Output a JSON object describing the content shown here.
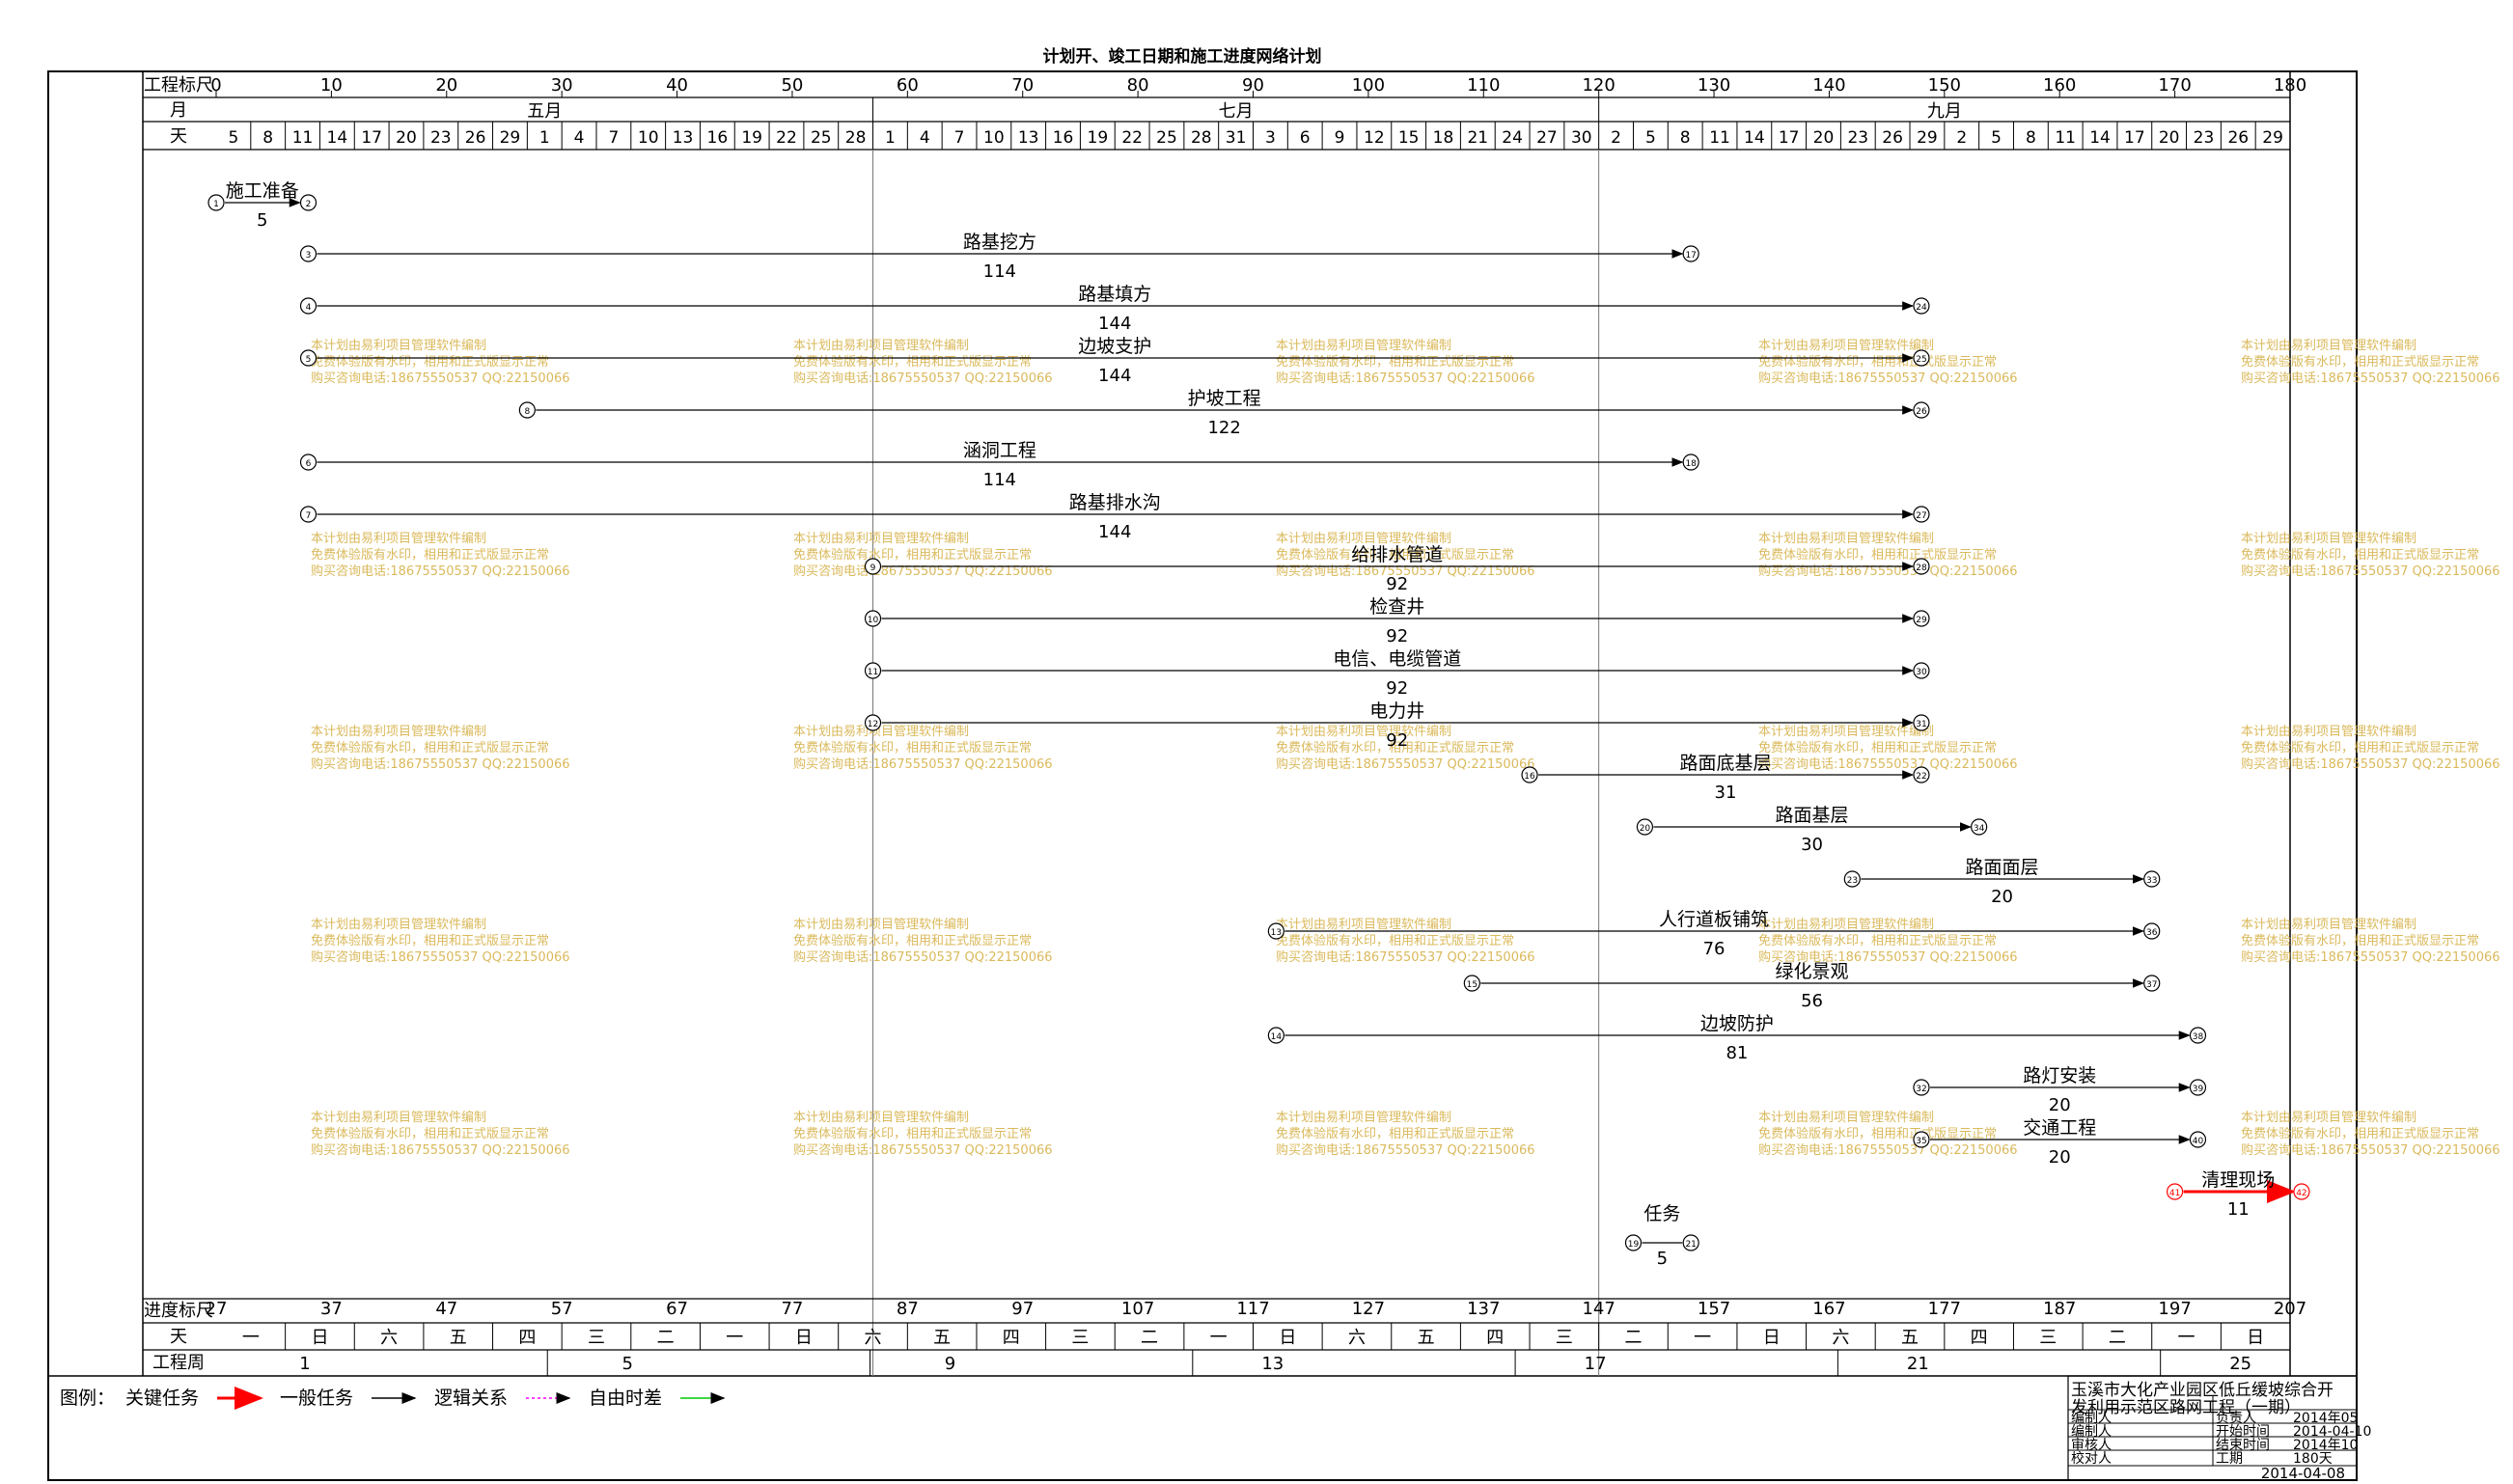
{
  "title": "计划开、竣工日期和施工进度网络计划",
  "header": {
    "scale_label": "工程标尺",
    "month_label": "月",
    "day_label": "天",
    "scale_ticks": [
      "0",
      "10",
      "20",
      "30",
      "40",
      "50",
      "60",
      "70",
      "80",
      "90",
      "100",
      "110",
      "120",
      "130",
      "140",
      "150",
      "160",
      "170",
      "180"
    ],
    "months": [
      "五月",
      "七月",
      "九月"
    ],
    "days": [
      "5",
      "8",
      "11",
      "14",
      "17",
      "20",
      "23",
      "26",
      "29",
      "1",
      "4",
      "7",
      "10",
      "13",
      "16",
      "19",
      "22",
      "25",
      "28",
      "1",
      "4",
      "7",
      "10",
      "13",
      "16",
      "19",
      "22",
      "25",
      "28",
      "31",
      "3",
      "6",
      "9",
      "12",
      "15",
      "18",
      "21",
      "24",
      "27",
      "30",
      "2",
      "5",
      "8",
      "11",
      "14",
      "17",
      "20",
      "23",
      "26",
      "29",
      "2",
      "5",
      "8",
      "11",
      "14",
      "17",
      "20",
      "23",
      "26",
      "29"
    ]
  },
  "footer": {
    "progress_label": "进度标尺",
    "progress_ticks": [
      "27",
      "37",
      "47",
      "57",
      "67",
      "77",
      "87",
      "97",
      "107",
      "117",
      "127",
      "137",
      "147",
      "157",
      "167",
      "177",
      "187",
      "197",
      "207"
    ],
    "day_label": "天",
    "weekdays": [
      "一",
      "日",
      "六",
      "五",
      "四",
      "三",
      "二",
      "一",
      "日",
      "六",
      "五",
      "四",
      "三",
      "二",
      "一",
      "日",
      "六",
      "五",
      "四",
      "三",
      "二",
      "一",
      "日",
      "六",
      "五",
      "四",
      "三",
      "二",
      "一",
      "日"
    ],
    "week_label": "工程周",
    "weeks": [
      "1",
      "5",
      "9",
      "13",
      "17",
      "21",
      "25"
    ]
  },
  "tasks": [
    {
      "name": "施工准备",
      "dur": "5",
      "from": "1",
      "to": "2",
      "type": "normal"
    },
    {
      "name": "路基挖方",
      "dur": "114",
      "from": "3",
      "to": "17",
      "type": "normal"
    },
    {
      "name": "路基填方",
      "dur": "144",
      "from": "4",
      "to": "24",
      "type": "normal"
    },
    {
      "name": "边坡支护",
      "dur": "144",
      "from": "5",
      "to": "25",
      "type": "normal"
    },
    {
      "name": "护坡工程",
      "dur": "122",
      "from": "8",
      "to": "26",
      "type": "normal"
    },
    {
      "name": "涵洞工程",
      "dur": "114",
      "from": "6",
      "to": "18",
      "type": "normal"
    },
    {
      "name": "路基排水沟",
      "dur": "144",
      "from": "7",
      "to": "27",
      "type": "normal"
    },
    {
      "name": "给排水管道",
      "dur": "92",
      "from": "9",
      "to": "28",
      "type": "normal"
    },
    {
      "name": "检查井",
      "dur": "92",
      "from": "10",
      "to": "29",
      "type": "normal"
    },
    {
      "name": "电信、电缆管道",
      "dur": "92",
      "from": "11",
      "to": "30",
      "type": "normal"
    },
    {
      "name": "电力井",
      "dur": "92",
      "from": "12",
      "to": "31",
      "type": "normal"
    },
    {
      "name": "路面底基层",
      "dur": "31",
      "from": "16",
      "to": "22",
      "type": "normal"
    },
    {
      "name": "路面基层",
      "dur": "30",
      "from": "20",
      "to": "34",
      "type": "normal"
    },
    {
      "name": "路面面层",
      "dur": "20",
      "from": "23",
      "to": "33",
      "type": "normal"
    },
    {
      "name": "人行道板铺筑",
      "dur": "76",
      "from": "13",
      "to": "36",
      "type": "normal"
    },
    {
      "name": "绿化景观",
      "dur": "56",
      "from": "15",
      "to": "37",
      "type": "normal"
    },
    {
      "name": "边坡防护",
      "dur": "81",
      "from": "14",
      "to": "38",
      "type": "normal"
    },
    {
      "name": "路灯安装",
      "dur": "20",
      "from": "32",
      "to": "39",
      "type": "normal"
    },
    {
      "name": "交通工程",
      "dur": "20",
      "from": "35",
      "to": "40",
      "type": "normal"
    },
    {
      "name": "清理现场",
      "dur": "11",
      "from": "41",
      "to": "42",
      "type": "critical"
    },
    {
      "name": "任务",
      "dur": "5",
      "from": "19",
      "to": "21",
      "type": "normal"
    }
  ],
  "watermark": {
    "line1": "本计划由易利项目管理软件编制",
    "line2": "免费体验版有水印，相用和正式版显示正常",
    "line3": "购买咨询电话:18675550537 QQ:22150066"
  },
  "legend": {
    "label": "图例：",
    "items": [
      {
        "name": "关键任务",
        "color": "#ff0000"
      },
      {
        "name": "一般任务",
        "color": "#000000"
      },
      {
        "name": "逻辑关系",
        "color": "#ff00ff"
      },
      {
        "name": "自由时差",
        "color": "#00cc00"
      }
    ]
  },
  "titleblock": {
    "project": "玉溪市大化产业园区低丘缓坡综合开发利用示范区路网工程（一期）",
    "rows": [
      {
        "k1": "编制人",
        "v1": "",
        "k2": "负责人",
        "v2": "2014年05"
      },
      {
        "k1": "编制人",
        "v1": "",
        "k2": "开始时间",
        "v2": "2014-04-10"
      },
      {
        "k1": "审核人",
        "v1": "",
        "k2": "结束时间",
        "v2": "2014年10"
      },
      {
        "k1": "校对人",
        "v1": "",
        "k2": "工期",
        "v2": "180天"
      }
    ],
    "date": "2014-04-08"
  }
}
